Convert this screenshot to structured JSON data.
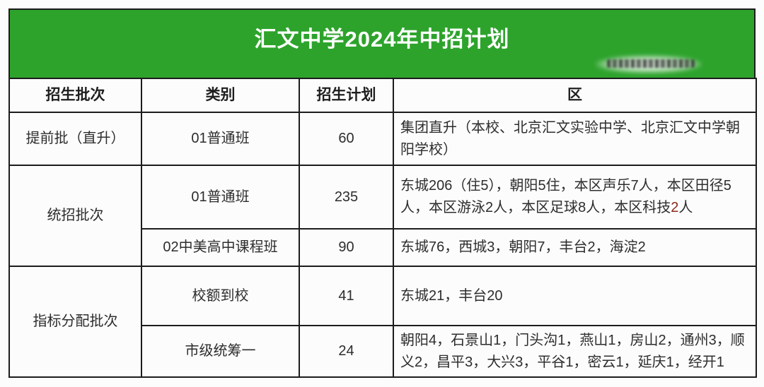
{
  "title": "汇文中学2024年中招计划",
  "colors": {
    "banner_green": "#2da32c",
    "border_color": "#1c1c1c",
    "text_color": "#2d2d2d",
    "highlight_red": "#8b2a1c"
  },
  "table": {
    "headers": {
      "batch": "招生批次",
      "category": "类别",
      "plan": "招生计划",
      "district": "区"
    },
    "rows": [
      {
        "batch": "提前批（直升）",
        "category": "01普通班",
        "plan": "60",
        "district": "集团直升（本校、北京汇文实验中学、北京汇文中学朝阳学校）"
      },
      {
        "batch": "统招批次",
        "category": "01普通班",
        "plan": "235",
        "district_before": "东城206（住5），朝阳5住，本区声乐7人，本区田径5人，本区游泳2人，本区足球8人，本区科技",
        "district_highlight": "2",
        "district_after": "人"
      },
      {
        "category": "02中美高中课程班",
        "plan": "90",
        "district": "东城76，西城3，朝阳7，丰台2，海淀2"
      },
      {
        "batch": "指标分配批次",
        "category": "校额到校",
        "plan": "41",
        "district": "东城21，丰台20"
      },
      {
        "category": "市级统筹一",
        "plan": "24",
        "district": "朝阳4，石景山1，门头沟1，燕山1，房山2，通州3，顺义2，昌平3，大兴3，平谷1，密云1，延庆1，经开1"
      }
    ]
  }
}
